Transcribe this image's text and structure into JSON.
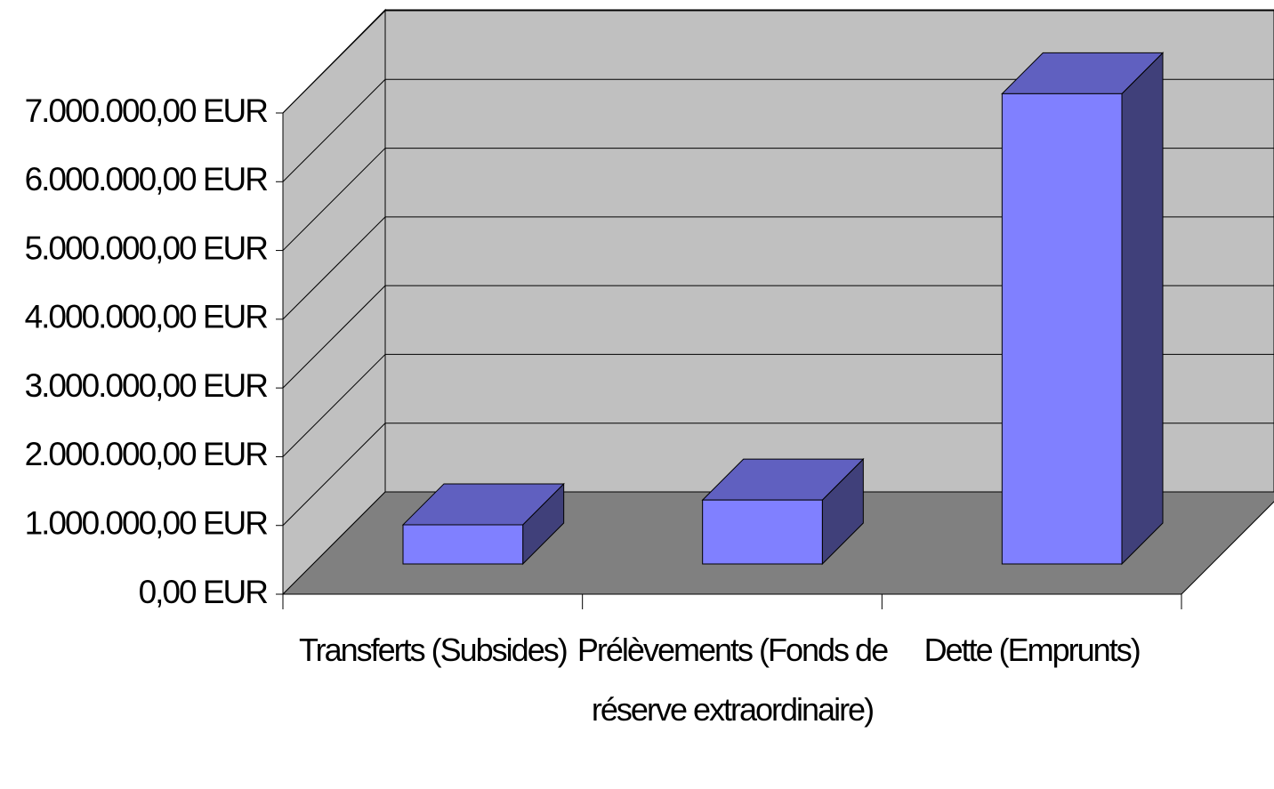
{
  "chart_data": {
    "type": "bar3d",
    "categories": [
      "Transferts (Subsides)",
      "Prélèvements (Fonds de réserve extraordinaire)",
      "Dette (Emprunts)"
    ],
    "values": [
      570000,
      930000,
      6840000
    ],
    "color": "#8080ff",
    "ylim": [
      0,
      7000000
    ],
    "yticks": [
      {
        "value": 0,
        "label": "0,00 EUR"
      },
      {
        "value": 1000000,
        "label": "1.000.000,00 EUR"
      },
      {
        "value": 2000000,
        "label": "2.000.000,00 EUR"
      },
      {
        "value": 3000000,
        "label": "3.000.000,00 EUR"
      },
      {
        "value": 4000000,
        "label": "4.000.000,00 EUR"
      },
      {
        "value": 5000000,
        "label": "5.000.000,00 EUR"
      },
      {
        "value": 6000000,
        "label": "6.000.000,00 EUR"
      },
      {
        "value": 7000000,
        "label": "7.000.000,00 EUR"
      }
    ],
    "grid": true
  }
}
